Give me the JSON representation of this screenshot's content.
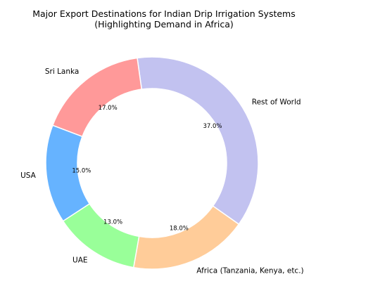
{
  "chart_data": {
    "type": "pie",
    "donut": true,
    "title": "Major Export Destinations for Indian Drip Irrigation Systems",
    "subtitle": "(Highlighting Demand in Africa)",
    "categories": [
      "Africa (Tanzania, Kenya, etc.)",
      "Rest of World",
      "Sri Lanka",
      "USA",
      "UAE"
    ],
    "values": [
      18.0,
      37.0,
      17.0,
      15.0,
      13.0
    ],
    "value_labels": [
      "18.0%",
      "37.0%",
      "17.0%",
      "15.0%",
      "13.0%"
    ],
    "colors": [
      "#ffcc99",
      "#c2c2f0",
      "#ff9999",
      "#66b3ff",
      "#99ff99"
    ],
    "start_angle_deg": -100,
    "direction": "counterclockwise",
    "legend": "none"
  }
}
